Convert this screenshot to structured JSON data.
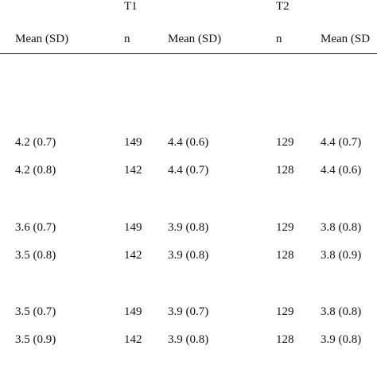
{
  "group_headers": {
    "t1": "T1",
    "t2": "T2"
  },
  "columns": [
    "Mean (SD)",
    "n",
    "Mean (SD)",
    "n",
    "Mean (SD"
  ],
  "rows": [
    [
      "4.2 (0.7)",
      "149",
      "4.4 (0.6)",
      "129",
      "4.4 (0.7)"
    ],
    [
      "4.2 (0.8)",
      "142",
      "4.4 (0.7)",
      "128",
      "4.4 (0.6)"
    ],
    [
      "3.6 (0.7)",
      "149",
      "3.9 (0.8)",
      "129",
      "3.8 (0.8)"
    ],
    [
      "3.5 (0.8)",
      "142",
      "3.9 (0.8)",
      "128",
      "3.8 (0.9)"
    ],
    [
      "3.5 (0.7)",
      "149",
      "3.9 (0.7)",
      "129",
      "3.8 (0.8)"
    ],
    [
      "3.5 (0.9)",
      "142",
      "3.9 (0.8)",
      "128",
      "3.9 (0.8)"
    ]
  ]
}
